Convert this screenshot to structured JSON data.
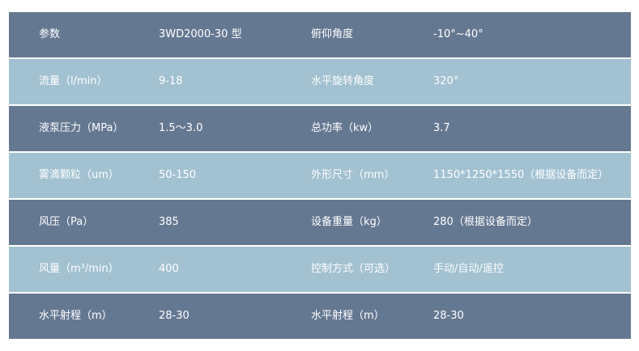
{
  "colors": {
    "dark_row": "#657892",
    "light_row": "#a2c1d1",
    "text": "#ffffff"
  },
  "rows": [
    {
      "label1": "参数",
      "value1": "3WD2000-30 型",
      "label2": "俯仰角度",
      "value2": "-10°~40°"
    },
    {
      "label1": "流量（l/min）",
      "value1": "9-18",
      "label2": "水平旋转角度",
      "value2": "320°"
    },
    {
      "label1": "液泵压力（MPa）",
      "value1": "1.5～3.0",
      "label2": "总功率（kw）",
      "value2": "3.7"
    },
    {
      "label1": "雾滴颗粒（um）",
      "value1": "50-150",
      "label2": "外形尺寸（mm）",
      "value2": "1150*1250*1550（根据设备而定）"
    },
    {
      "label1": "风压（Pa）",
      "value1": "385",
      "label2": "设备重量（kg）",
      "value2": "280（根据设备而定）"
    },
    {
      "label1": "风量（m³/min）",
      "value1": "400",
      "label2": "控制方式（可选）",
      "value2": "手动/自动/遥控"
    },
    {
      "label1": "水平射程（m）",
      "value1": "28-30",
      "label2": "水平射程（m）",
      "value2": "28-30"
    }
  ]
}
